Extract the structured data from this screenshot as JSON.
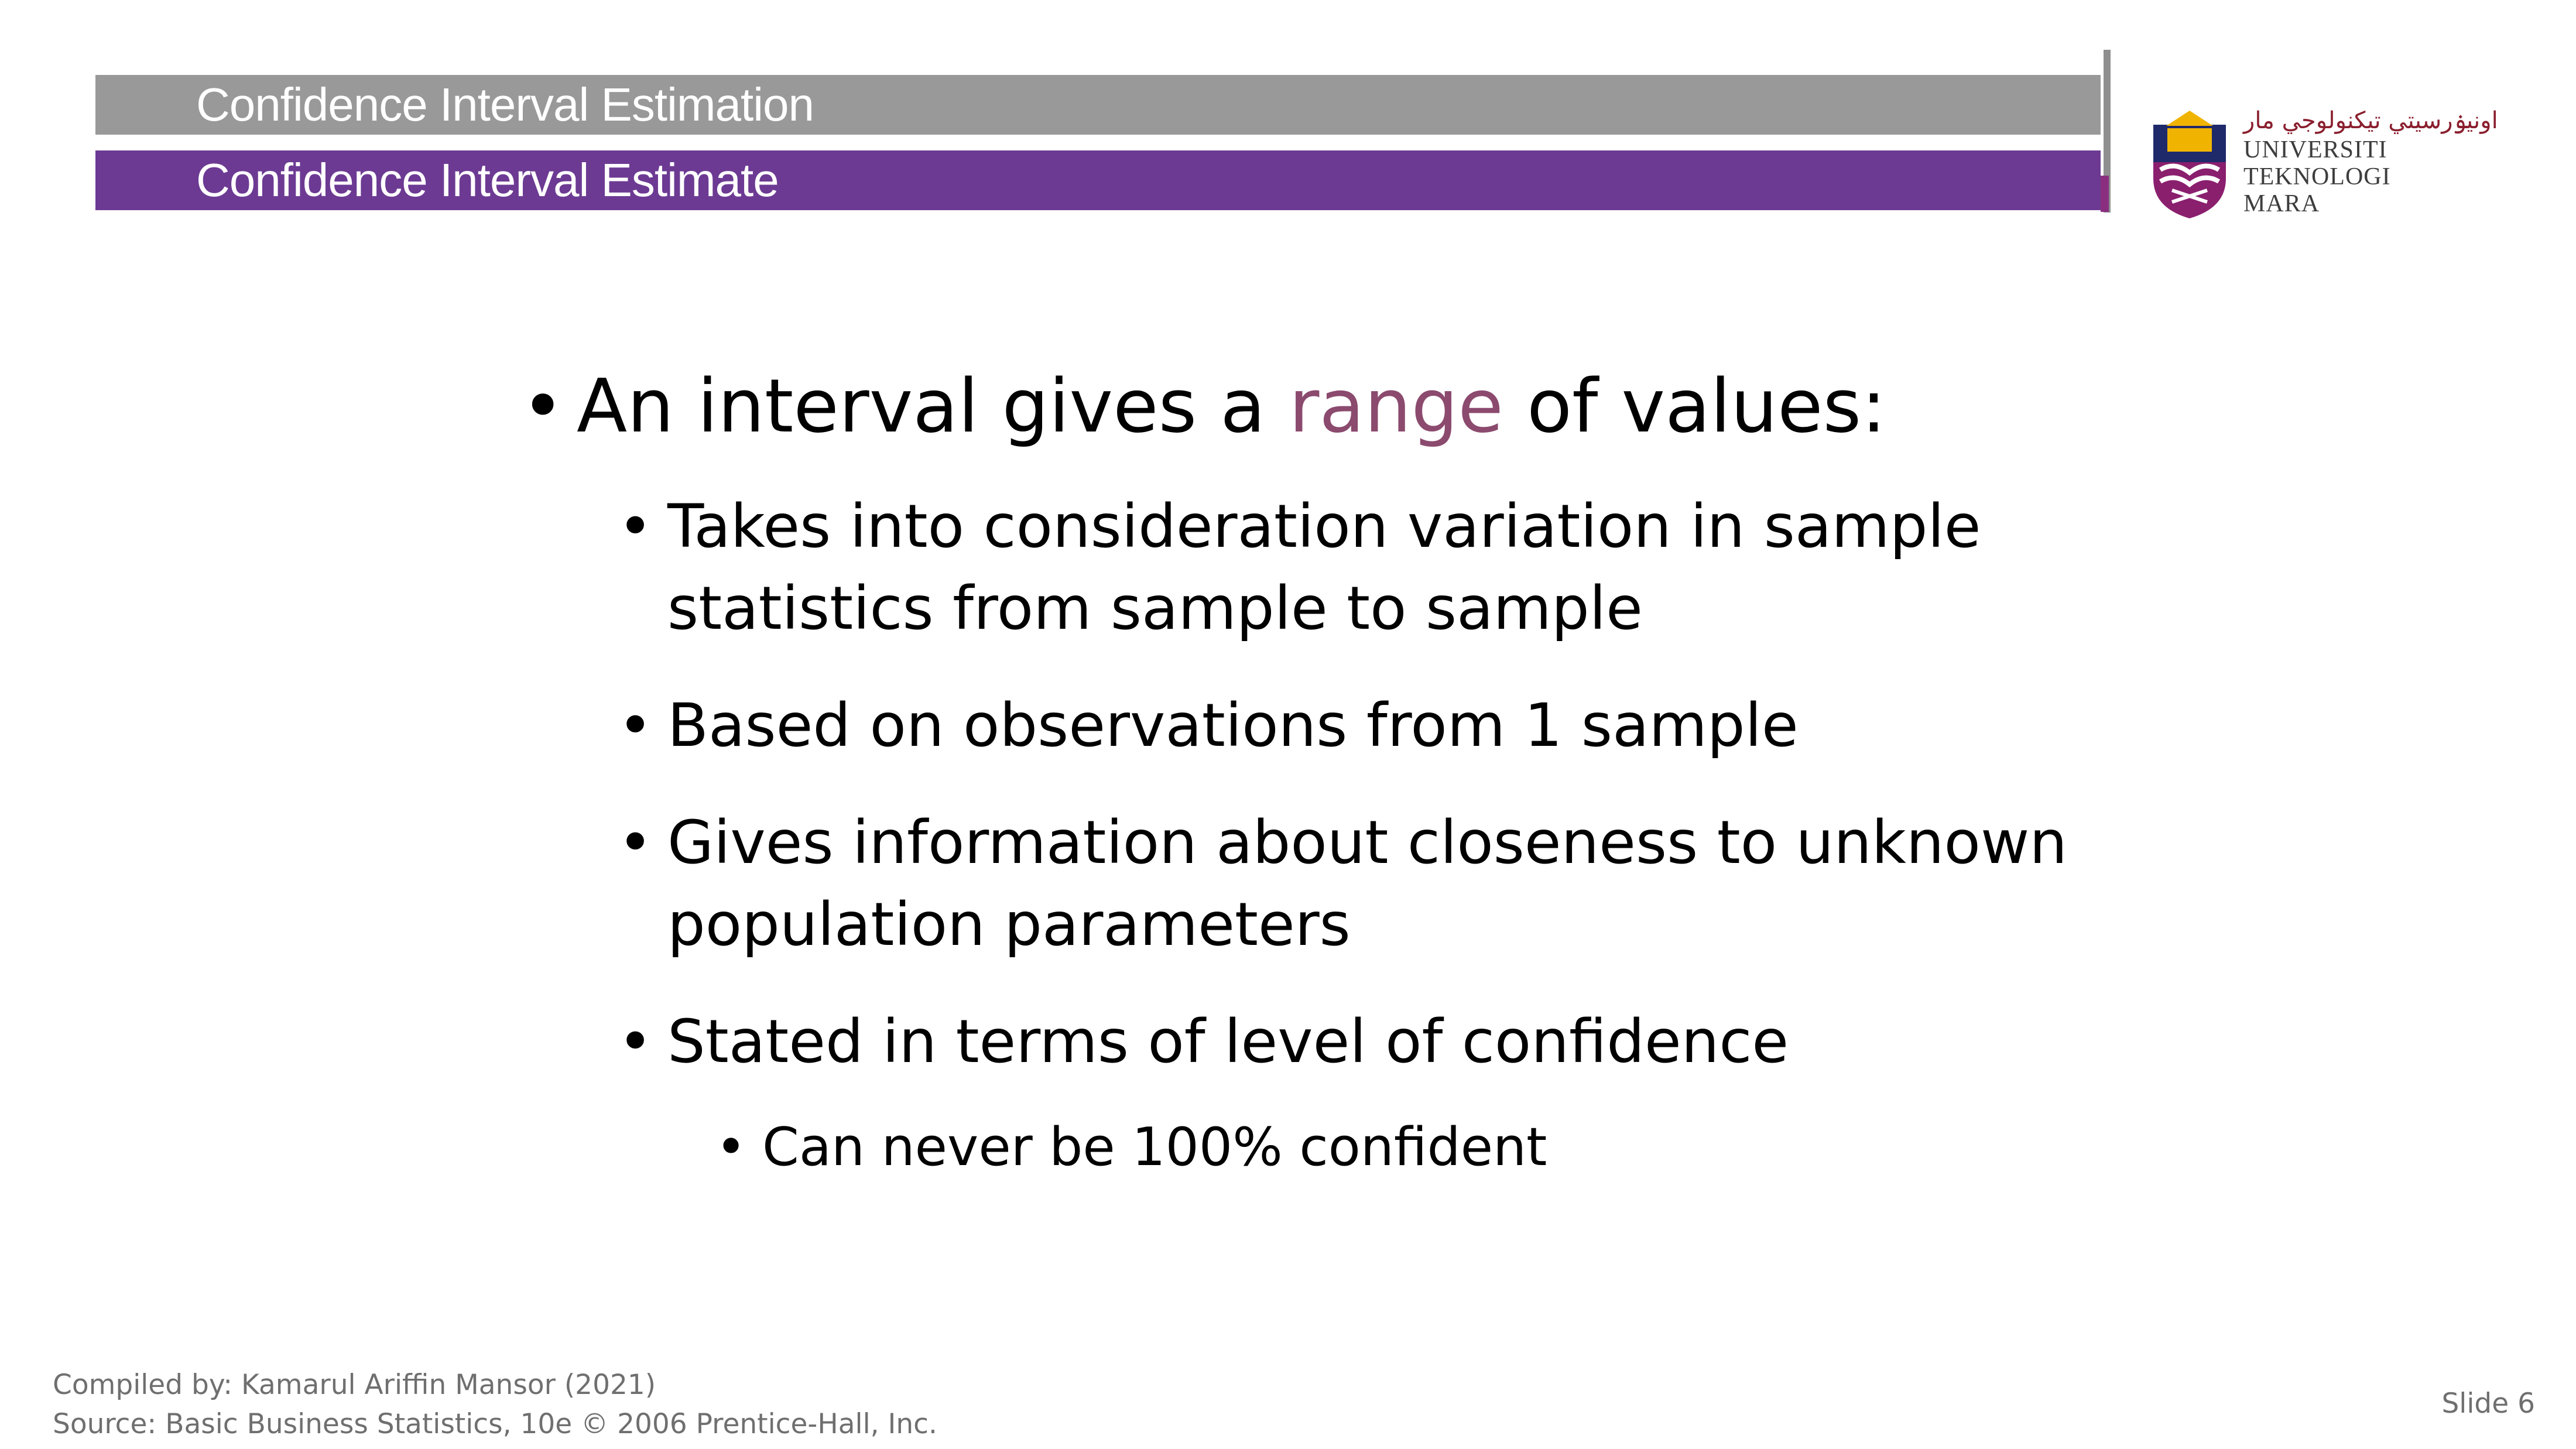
{
  "header": {
    "section_title": "Confidence Interval Estimation",
    "slide_title": "Confidence Interval Estimate"
  },
  "logo": {
    "jawi": "اونيۏرسيتي تيكنولوجي مار",
    "line1": "UNIVERSITI",
    "line2": "TEKNOLOGI",
    "line3": "MARA"
  },
  "content": {
    "main_bullet": {
      "before": "An interval gives a ",
      "highlight": "range",
      "after": " of values:"
    },
    "sub_bullets": [
      "Takes into consideration variation in sample statistics from sample to sample",
      "Based on observations from 1 sample",
      "Gives information about closeness to unknown population parameters",
      "Stated in terms of level of confidence"
    ],
    "sub_sub_bullets": [
      "Can never be 100% confident"
    ]
  },
  "footer": {
    "compiled_by": "Compiled by: Kamarul Ariffin Mansor (2021)",
    "source": "Source: Basic Business Statistics, 10e © 2006 Prentice-Hall, Inc.",
    "slide_number": "Slide 6"
  },
  "colors": {
    "header_gray": "#999999",
    "header_purple": "#6c3a93",
    "accent_text": "#8b4a6e"
  }
}
